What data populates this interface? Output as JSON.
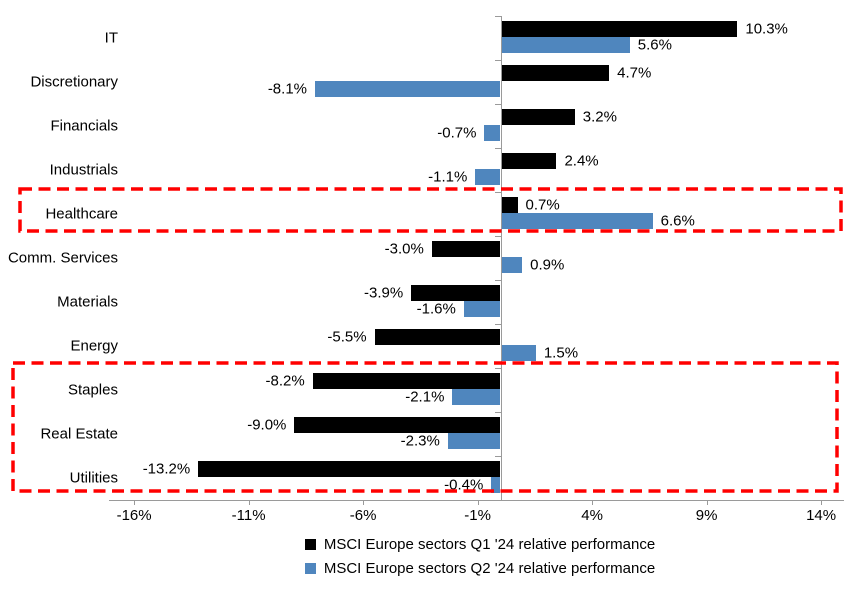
{
  "chart_data": {
    "type": "bar",
    "orientation": "horizontal",
    "title": "",
    "xlabel": "",
    "ylabel": "",
    "categories": [
      "IT",
      "Discretionary",
      "Financials",
      "Industrials",
      "Healthcare",
      "Comm. Services",
      "Materials",
      "Energy",
      "Staples",
      "Real Estate",
      "Utilities"
    ],
    "series": [
      {
        "name": "MSCI Europe sectors Q1 '24 relative performance",
        "color": "#000000",
        "values": [
          10.3,
          4.7,
          3.2,
          2.4,
          0.7,
          -3.0,
          -3.9,
          -5.5,
          -8.2,
          -9.0,
          -13.2
        ],
        "labels": [
          "10.3%",
          "4.7%",
          "3.2%",
          "2.4%",
          "0.7%",
          "-3.0%",
          "-3.9%",
          "-5.5%",
          "-8.2%",
          "-9.0%",
          "-13.2%"
        ]
      },
      {
        "name": "MSCI Europe sectors Q2 '24 relative performance",
        "color": "#4f86be",
        "values": [
          5.6,
          -8.1,
          -0.7,
          -1.1,
          6.6,
          0.9,
          -1.6,
          1.5,
          -2.1,
          -2.3,
          -0.4
        ],
        "labels": [
          "5.6%",
          "-8.1%",
          "-0.7%",
          "-1.1%",
          "6.6%",
          "0.9%",
          "-1.6%",
          "1.5%",
          "-2.1%",
          "-2.3%",
          "-0.4%"
        ]
      }
    ],
    "x_ticks": [
      "-16%",
      "-11%",
      "-6%",
      "-1%",
      "4%",
      "9%",
      "14%"
    ],
    "x_tick_values": [
      -16,
      -11,
      -6,
      -1,
      4,
      9,
      14
    ],
    "xlim": [
      -17.1,
      15
    ],
    "grid": false,
    "legend_position": "bottom",
    "axis_color": "#9a9a9a",
    "annotations": [
      {
        "type": "highlight-box",
        "style": "dashed",
        "color": "#ff0000",
        "rows": [
          "Healthcare"
        ]
      },
      {
        "type": "highlight-box",
        "style": "dashed",
        "color": "#ff0000",
        "rows": [
          "Staples",
          "Real Estate",
          "Utilities"
        ]
      }
    ]
  }
}
